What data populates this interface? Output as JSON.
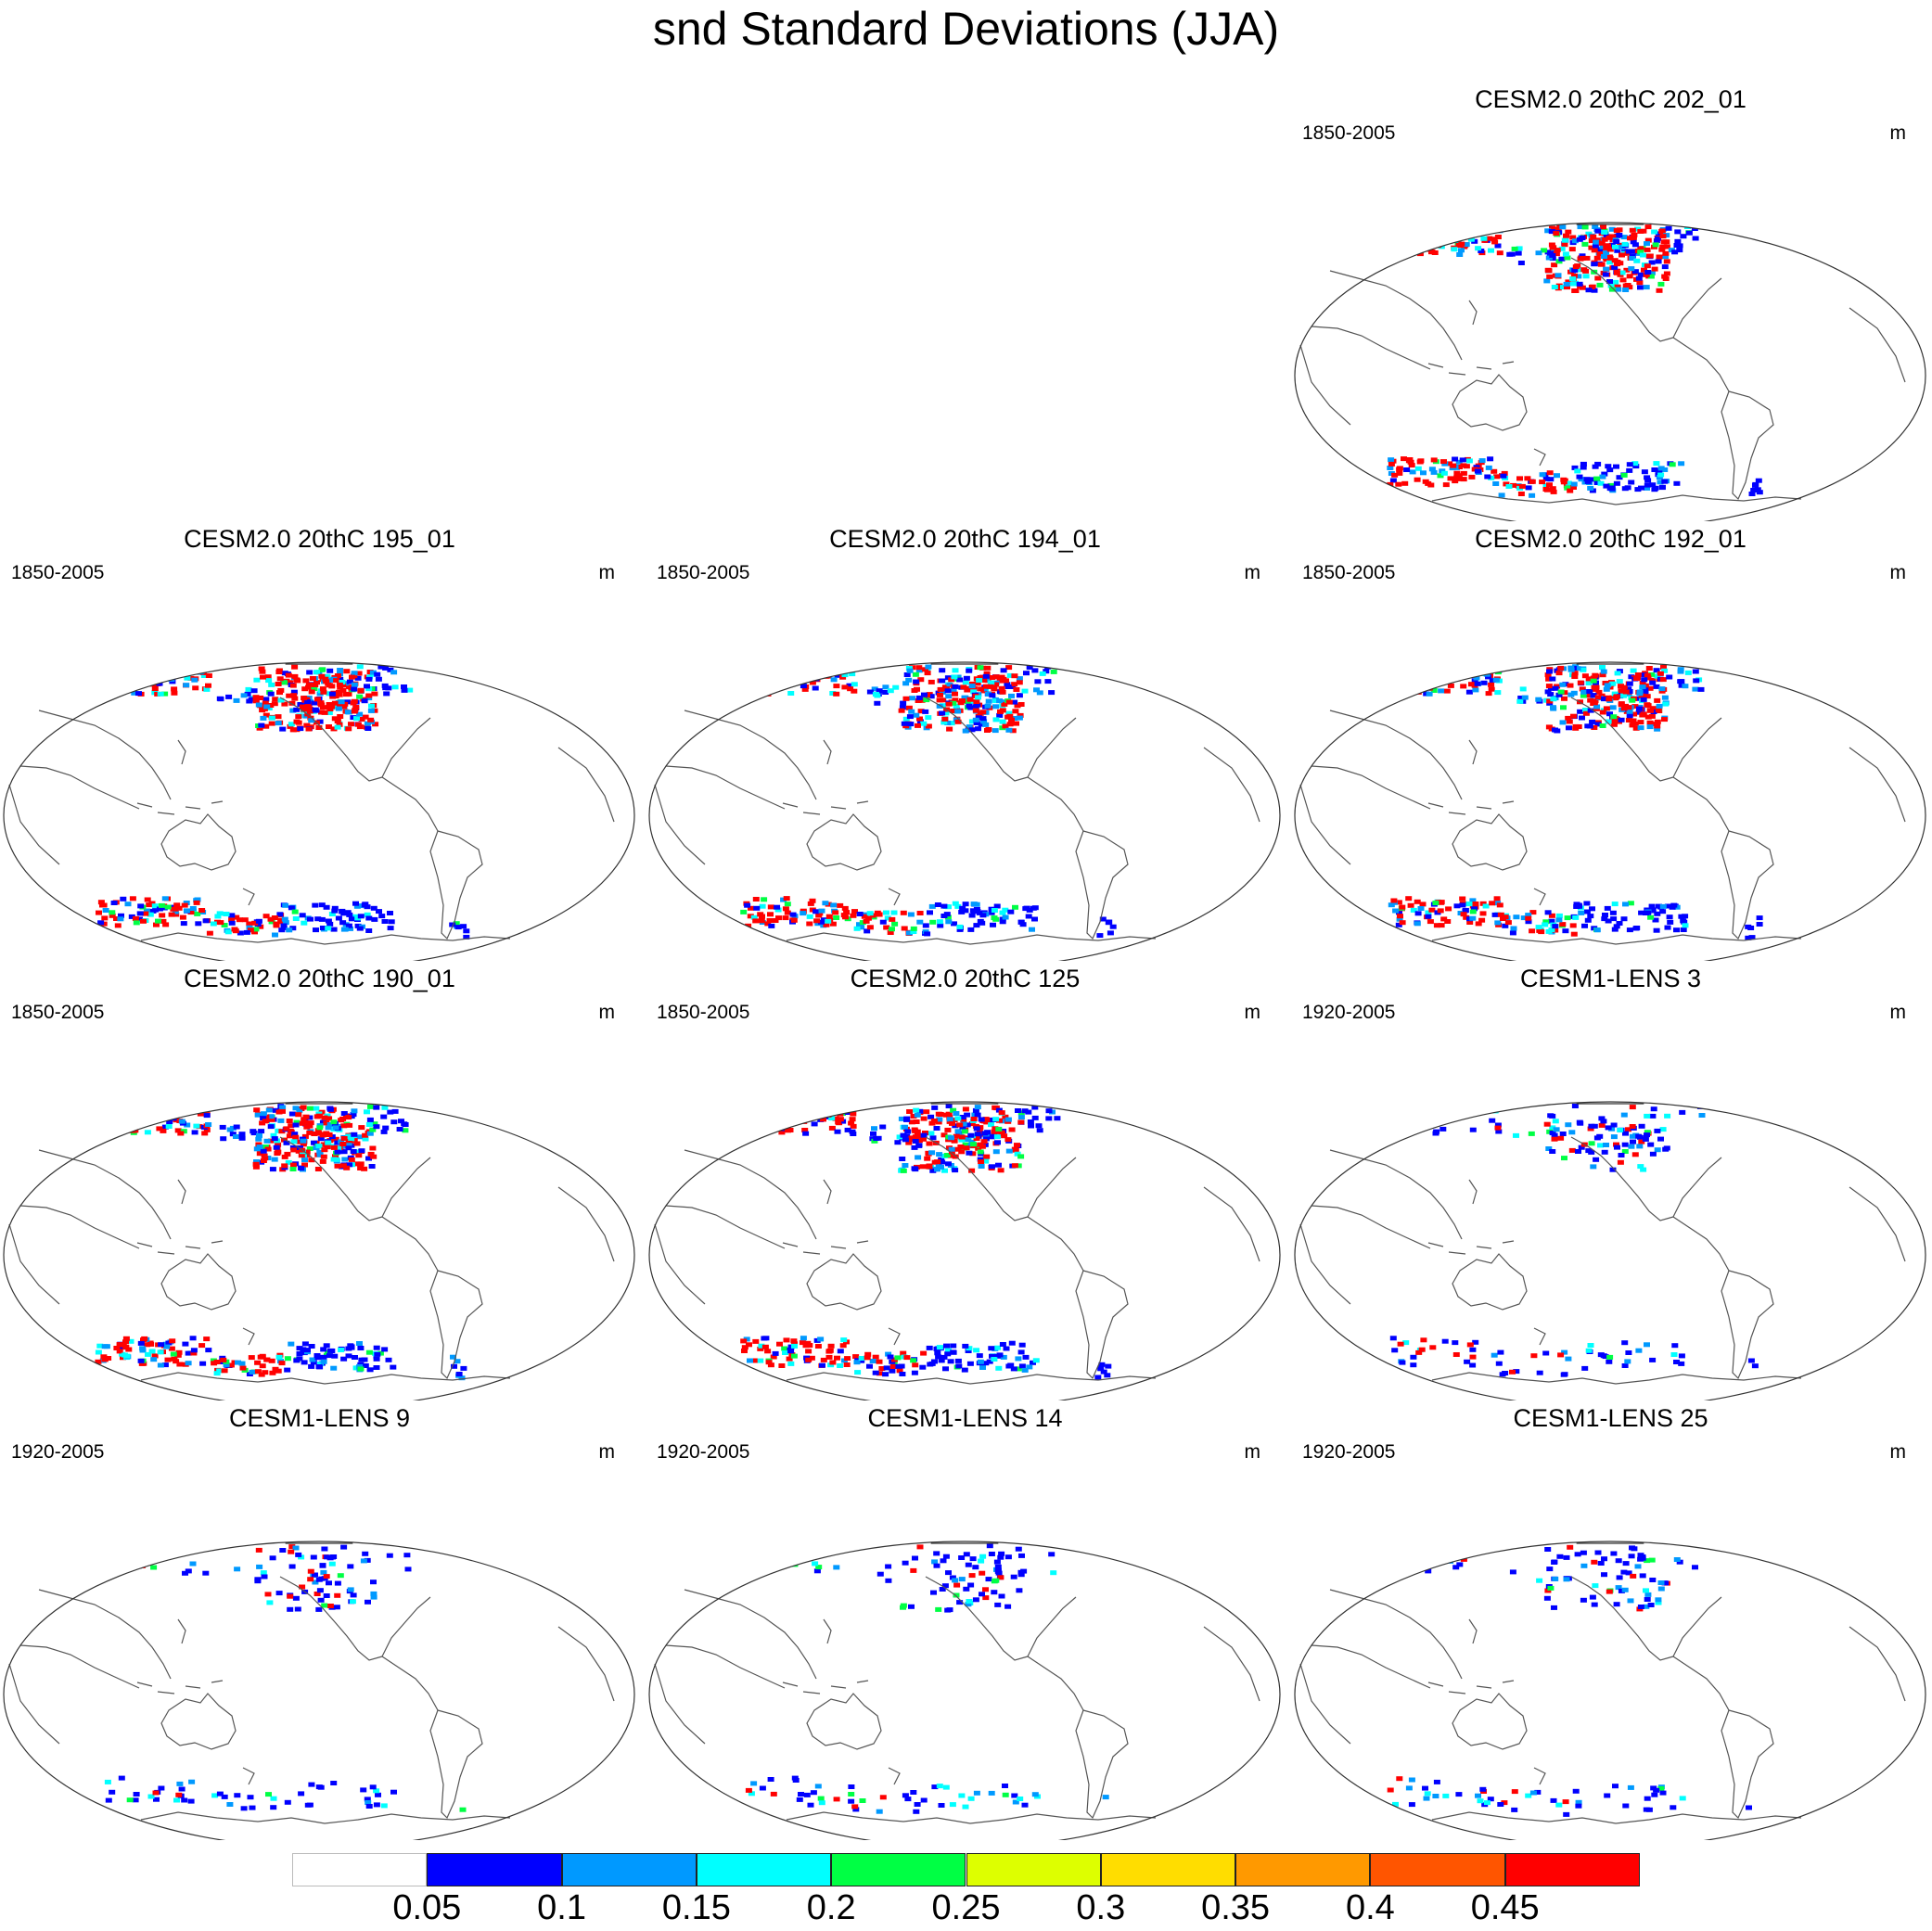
{
  "title": "snd Standard Deviations (JJA)",
  "units": "m",
  "panels": [
    {
      "id": "p-202",
      "title": "CESM2.0 20thC 202_01",
      "period": "1850-2005",
      "snow_intensity": 0.95
    },
    {
      "id": "p-195",
      "title": "CESM2.0 20thC 195_01",
      "period": "1850-2005",
      "snow_intensity": 0.95
    },
    {
      "id": "p-194",
      "title": "CESM2.0 20thC 194_01",
      "period": "1850-2005",
      "snow_intensity": 0.9
    },
    {
      "id": "p-192",
      "title": "CESM2.0 20thC 192_01",
      "period": "1850-2005",
      "snow_intensity": 0.9
    },
    {
      "id": "p-190",
      "title": "CESM2.0 20thC 190_01",
      "period": "1850-2005",
      "snow_intensity": 0.95
    },
    {
      "id": "p-125",
      "title": "CESM2.0 20thC 125",
      "period": "1850-2005",
      "snow_intensity": 0.85
    },
    {
      "id": "p-lens3",
      "title": "CESM1-LENS 3",
      "period": "1920-2005",
      "snow_intensity": 0.3
    },
    {
      "id": "p-lens9",
      "title": "CESM1-LENS 9",
      "period": "1920-2005",
      "snow_intensity": 0.25
    },
    {
      "id": "p-lens14",
      "title": "CESM1-LENS 14",
      "period": "1920-2005",
      "snow_intensity": 0.25
    },
    {
      "id": "p-lens25",
      "title": "CESM1-LENS 25",
      "period": "1920-2005",
      "snow_intensity": 0.25
    }
  ],
  "colorbar": {
    "colors": [
      "#ffffff",
      "#0000ff",
      "#0099ff",
      "#00ffff",
      "#00ff44",
      "#ddff00",
      "#ffdd00",
      "#ff9900",
      "#ff5500",
      "#ff0000"
    ],
    "labels": [
      "0.05",
      "0.1",
      "0.15",
      "0.2",
      "0.25",
      "0.3",
      "0.35",
      "0.4",
      "0.45"
    ]
  }
}
